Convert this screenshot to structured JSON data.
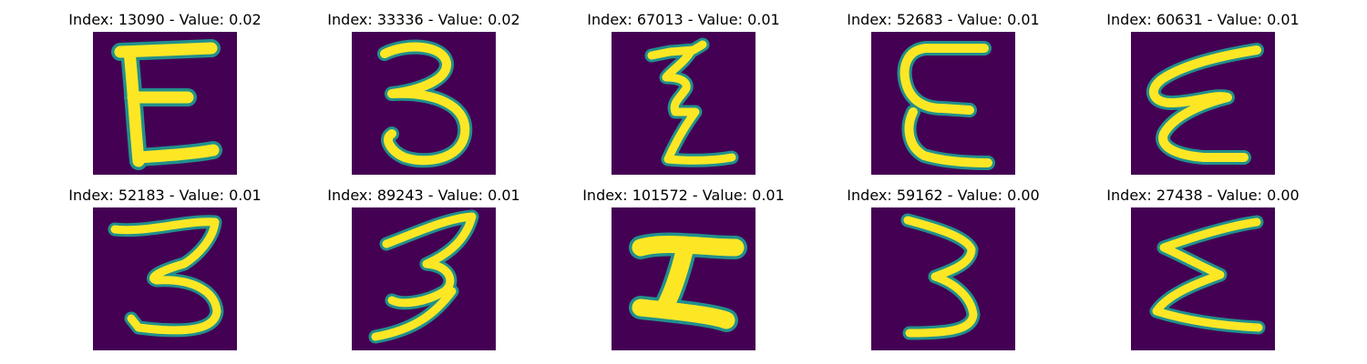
{
  "figure": {
    "panels": [
      {
        "title": "Index: 13090 - Value: 0.02",
        "glyph": "E-like handwritten character"
      },
      {
        "title": "Index: 33336 - Value: 0.02",
        "glyph": "3-like handwritten character"
      },
      {
        "title": "Index: 67013 - Value: 0.01",
        "glyph": "zigzag handwritten character"
      },
      {
        "title": "Index: 52683 - Value: 0.01",
        "glyph": "E-like handwritten character"
      },
      {
        "title": "Index: 60631 - Value: 0.01",
        "glyph": "epsilon-like handwritten character"
      },
      {
        "title": "Index: 52183 - Value: 0.01",
        "glyph": "3-like handwritten character"
      },
      {
        "title": "Index: 89243 - Value: 0.01",
        "glyph": "3-like handwritten character"
      },
      {
        "title": "Index: 101572 - Value: 0.01",
        "glyph": "I-like handwritten character"
      },
      {
        "title": "Index: 59162 - Value: 0.00",
        "glyph": "3-like handwritten character"
      },
      {
        "title": "Index: 27438 - Value: 0.00",
        "glyph": "epsilon-like handwritten character"
      }
    ],
    "colors": {
      "background": "#440154",
      "stroke": "#fde725",
      "edge": "#21908c"
    }
  }
}
